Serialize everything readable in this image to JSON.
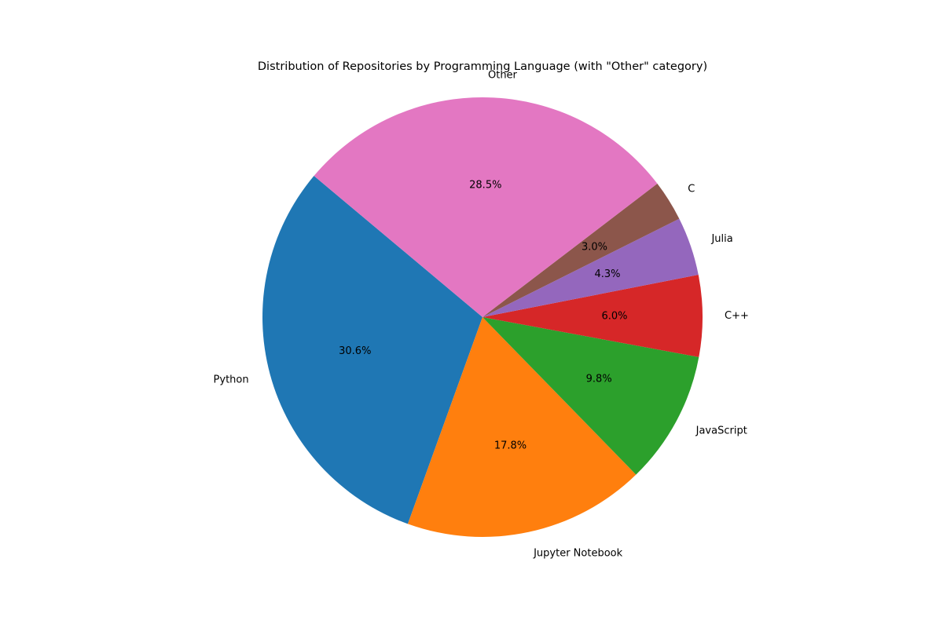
{
  "chart_data": {
    "type": "pie",
    "title": "Distribution of Repositories by Programming Language (with \"Other\" category)",
    "categories": [
      "Python",
      "Jupyter Notebook",
      "JavaScript",
      "C++",
      "Julia",
      "C",
      "Other"
    ],
    "values": [
      30.6,
      17.8,
      9.8,
      6.0,
      4.3,
      3.0,
      28.5
    ],
    "percent_labels": [
      "30.6%",
      "17.8%",
      "9.8%",
      "6.0%",
      "4.3%",
      "3.0%",
      "28.5%"
    ],
    "colors": [
      "#1f77b4",
      "#ff7f0e",
      "#2ca02c",
      "#d62728",
      "#9467bd",
      "#8c564b",
      "#e377c2"
    ],
    "start_angle_deg": 140,
    "direction": "counterclockwise",
    "legend": "none"
  }
}
